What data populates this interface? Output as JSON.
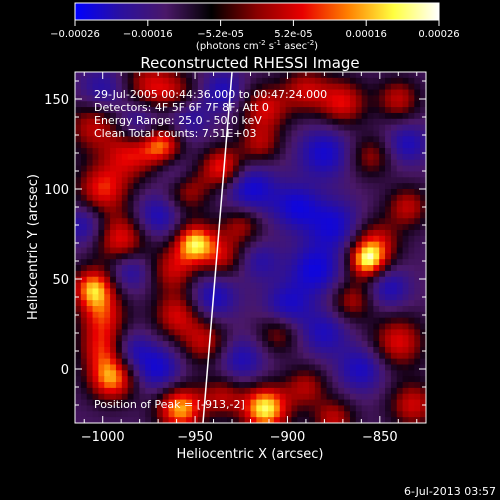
{
  "colorbar": {
    "ticks": [
      "-0.00026",
      "-0.00016",
      "-5.2e-05",
      "5.2e-05",
      "0.00016",
      "0.00026"
    ],
    "unit_parts": {
      "a": "(photons cm",
      "b": "-2",
      "c": " s",
      "d": "-1",
      "e": " asec",
      "f": "-2",
      "g": ")"
    },
    "colors": [
      "#0000ff",
      "#2a10a0",
      "#4a1868",
      "#000000",
      "#8a0000",
      "#e80000",
      "#ff8000",
      "#ffff40",
      "#ffffff"
    ]
  },
  "info": {
    "time_range": "29-Jul-2005 00:44:36.000 to 00:47:24.000",
    "detectors": "Detectors: 4F 5F 6F 7F 8F, Att 0",
    "energy": "Energy Range: 25.0 - 50.0 keV",
    "clean": "Clean     Total counts: 7.51E+03",
    "peak": "Position of Peak = [-913,-2]"
  },
  "footer": {
    "timestamp": "6-Jul-2013 03:57"
  },
  "chart_data": {
    "type": "heatmap",
    "title": "Reconstructed RHESSI Image",
    "xlabel": "Heliocentric X (arcsec)",
    "ylabel": "Heliocentric Y (arcsec)",
    "xlim": [
      -1015,
      -825
    ],
    "ylim": [
      -30,
      165
    ],
    "x_ticks": [
      -1000,
      -950,
      -900,
      -850
    ],
    "y_ticks": [
      0,
      50,
      100,
      150
    ],
    "x_tick_labels": [
      "−1000",
      "−950",
      "−900",
      "−850"
    ],
    "y_tick_labels": [
      "0",
      "50",
      "100",
      "150"
    ],
    "colorbar_range": [
      -0.00026,
      0.00026
    ],
    "peak_position": [
      -913,
      -2
    ],
    "blobs": [
      {
        "x": -975,
        "y": 158,
        "v": 0.55,
        "r": 10
      },
      {
        "x": -960,
        "y": 152,
        "v": 0.45,
        "r": 9
      },
      {
        "x": -1005,
        "y": 135,
        "v": 0.55,
        "r": 10
      },
      {
        "x": -985,
        "y": 120,
        "v": 0.65,
        "r": 10
      },
      {
        "x": -968,
        "y": 125,
        "v": 0.85,
        "r": 8
      },
      {
        "x": -1000,
        "y": 100,
        "v": 0.7,
        "r": 10
      },
      {
        "x": -990,
        "y": 72,
        "v": 0.7,
        "r": 10
      },
      {
        "x": -955,
        "y": 100,
        "v": 0.6,
        "r": 9
      },
      {
        "x": -950,
        "y": 70,
        "v": 1.0,
        "r": 8
      },
      {
        "x": -962,
        "y": 55,
        "v": 0.55,
        "r": 9
      },
      {
        "x": -935,
        "y": 62,
        "v": 0.5,
        "r": 8
      },
      {
        "x": -925,
        "y": 80,
        "v": 0.5,
        "r": 8
      },
      {
        "x": -935,
        "y": 112,
        "v": 0.75,
        "r": 8
      },
      {
        "x": -915,
        "y": 125,
        "v": 0.5,
        "r": 8
      },
      {
        "x": -912,
        "y": 145,
        "v": 0.6,
        "r": 9
      },
      {
        "x": -890,
        "y": 155,
        "v": 0.55,
        "r": 9
      },
      {
        "x": -870,
        "y": 148,
        "v": 0.65,
        "r": 9
      },
      {
        "x": -840,
        "y": 150,
        "v": 0.55,
        "r": 8
      },
      {
        "x": -855,
        "y": 118,
        "v": 0.45,
        "r": 8
      },
      {
        "x": -835,
        "y": 90,
        "v": 0.55,
        "r": 8
      },
      {
        "x": -852,
        "y": 70,
        "v": 0.6,
        "r": 9
      },
      {
        "x": -857,
        "y": 60,
        "v": 0.9,
        "r": 7
      },
      {
        "x": -865,
        "y": 38,
        "v": 0.5,
        "r": 8
      },
      {
        "x": -840,
        "y": 15,
        "v": 0.65,
        "r": 10
      },
      {
        "x": -832,
        "y": -20,
        "v": 0.6,
        "r": 9
      },
      {
        "x": -1005,
        "y": 45,
        "v": 0.9,
        "r": 8
      },
      {
        "x": -1000,
        "y": 30,
        "v": 0.6,
        "r": 9
      },
      {
        "x": -1000,
        "y": 12,
        "v": 0.6,
        "r": 9
      },
      {
        "x": -995,
        "y": -5,
        "v": 0.9,
        "r": 9
      },
      {
        "x": -960,
        "y": 30,
        "v": 0.6,
        "r": 9
      },
      {
        "x": -945,
        "y": 15,
        "v": 0.55,
        "r": 9
      },
      {
        "x": -958,
        "y": -22,
        "v": 0.95,
        "r": 9
      },
      {
        "x": -935,
        "y": -15,
        "v": 0.5,
        "r": 8
      },
      {
        "x": -912,
        "y": -22,
        "v": 1.1,
        "r": 9
      },
      {
        "x": -905,
        "y": 20,
        "v": 0.45,
        "r": 8
      },
      {
        "x": -890,
        "y": -10,
        "v": 0.5,
        "r": 8
      },
      {
        "x": -875,
        "y": -28,
        "v": 0.55,
        "r": 8
      },
      {
        "x": -980,
        "y": 135,
        "v": -0.5,
        "r": 9
      },
      {
        "x": -955,
        "y": 140,
        "v": -0.45,
        "r": 9
      },
      {
        "x": -1000,
        "y": 155,
        "v": -0.4,
        "r": 9
      },
      {
        "x": -935,
        "y": 155,
        "v": -0.45,
        "r": 8
      },
      {
        "x": -920,
        "y": 100,
        "v": -0.6,
        "r": 10
      },
      {
        "x": -970,
        "y": 85,
        "v": -0.5,
        "r": 9
      },
      {
        "x": -960,
        "y": 108,
        "v": -0.4,
        "r": 8
      },
      {
        "x": -880,
        "y": 120,
        "v": -0.55,
        "r": 10
      },
      {
        "x": -895,
        "y": 90,
        "v": -0.55,
        "r": 9
      },
      {
        "x": -875,
        "y": 80,
        "v": -0.55,
        "r": 10
      },
      {
        "x": -885,
        "y": 55,
        "v": -0.6,
        "r": 10
      },
      {
        "x": -900,
        "y": 35,
        "v": -0.5,
        "r": 9
      },
      {
        "x": -880,
        "y": 20,
        "v": -0.45,
        "r": 9
      },
      {
        "x": -845,
        "y": 45,
        "v": -0.45,
        "r": 8
      },
      {
        "x": -835,
        "y": 125,
        "v": -0.45,
        "r": 8
      },
      {
        "x": -985,
        "y": 55,
        "v": -0.45,
        "r": 8
      },
      {
        "x": -985,
        "y": 10,
        "v": -0.45,
        "r": 8
      },
      {
        "x": -970,
        "y": 0,
        "v": -0.55,
        "r": 9
      },
      {
        "x": -940,
        "y": 40,
        "v": -0.5,
        "r": 9
      },
      {
        "x": -925,
        "y": 5,
        "v": -0.45,
        "r": 9
      },
      {
        "x": -860,
        "y": 0,
        "v": -0.5,
        "r": 9
      },
      {
        "x": -1010,
        "y": 80,
        "v": -0.45,
        "r": 8
      },
      {
        "x": -915,
        "y": 60,
        "v": -0.35,
        "r": 8
      }
    ]
  }
}
